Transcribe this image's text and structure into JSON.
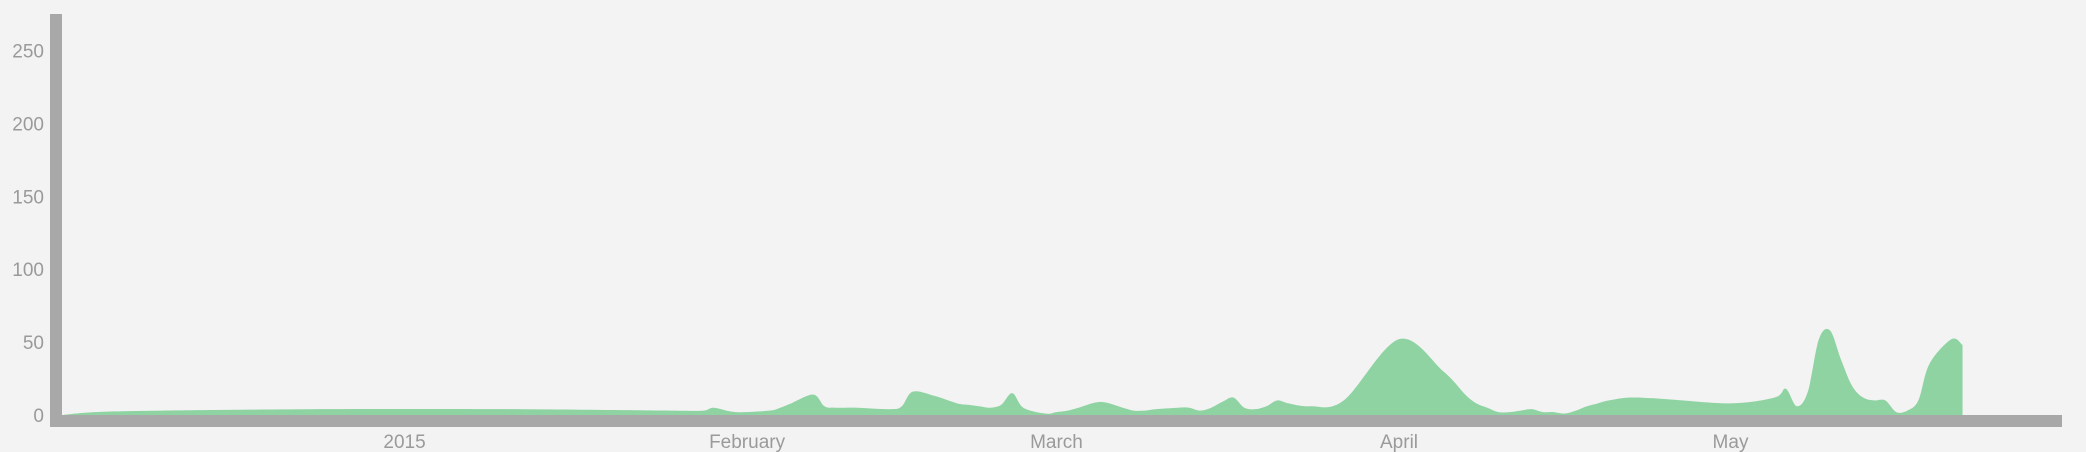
{
  "chart_data": {
    "type": "area",
    "title": "",
    "xlabel": "",
    "ylabel": "",
    "x_domain": [
      "2014-12-01",
      "2015-05-31"
    ],
    "ylim": [
      0,
      275
    ],
    "y_ticks": [
      0,
      50,
      100,
      150,
      200,
      250
    ],
    "x_ticks": [
      {
        "date": "2015-01-01",
        "label": "2015"
      },
      {
        "date": "2015-02-01",
        "label": "February"
      },
      {
        "date": "2015-03-01",
        "label": "March"
      },
      {
        "date": "2015-04-01",
        "label": "April"
      },
      {
        "date": "2015-05-01",
        "label": "May"
      }
    ],
    "colors": {
      "area": "#8fd3a3",
      "axis": "#a8a8a8",
      "tick_text": "#9a9a9a",
      "background": "#f3f3f3"
    },
    "grid": false,
    "legend": "none",
    "series": [
      {
        "x": [
          "2014-12-01",
          "2014-12-04",
          "2014-12-10",
          "2014-12-25",
          "2015-01-10",
          "2015-01-25",
          "2015-01-28",
          "2015-01-29",
          "2015-01-31",
          "2015-02-03",
          "2015-02-04",
          "2015-02-05",
          "2015-02-07",
          "2015-02-08",
          "2015-02-09",
          "2015-02-11",
          "2015-02-14",
          "2015-02-15",
          "2015-02-16",
          "2015-02-18",
          "2015-02-20",
          "2015-02-21",
          "2015-02-22",
          "2015-02-23",
          "2015-02-24",
          "2015-02-25",
          "2015-02-26",
          "2015-02-28",
          "2015-03-01",
          "2015-03-02",
          "2015-03-03",
          "2015-03-05",
          "2015-03-07",
          "2015-03-08",
          "2015-03-09",
          "2015-03-10",
          "2015-03-12",
          "2015-03-13",
          "2015-03-14",
          "2015-03-15",
          "2015-03-16",
          "2015-03-17",
          "2015-03-18",
          "2015-03-19",
          "2015-03-20",
          "2015-03-21",
          "2015-03-22",
          "2015-03-24",
          "2015-03-27",
          "2015-04-01",
          "2015-04-05",
          "2015-04-07",
          "2015-04-08",
          "2015-04-09",
          "2015-04-10",
          "2015-04-11",
          "2015-04-12",
          "2015-04-13",
          "2015-04-14",
          "2015-04-15",
          "2015-04-16",
          "2015-04-17",
          "2015-04-18",
          "2015-04-19",
          "2015-04-20",
          "2015-04-22",
          "2015-04-25",
          "2015-05-01",
          "2015-05-05",
          "2015-05-06",
          "2015-05-07",
          "2015-05-08",
          "2015-05-09",
          "2015-05-10",
          "2015-05-11",
          "2015-05-12",
          "2015-05-13",
          "2015-05-14",
          "2015-05-15",
          "2015-05-16",
          "2015-05-17",
          "2015-05-18",
          "2015-05-19",
          "2015-05-21",
          "2015-05-22"
        ],
        "y": [
          0,
          2,
          3,
          4,
          4,
          3,
          3,
          5,
          2,
          3,
          5,
          8,
          14,
          6,
          5,
          5,
          4,
          6,
          16,
          13,
          8,
          7,
          6,
          5,
          7,
          15,
          5,
          1,
          2,
          3,
          5,
          9,
          5,
          3,
          3,
          4,
          5,
          5,
          3,
          5,
          9,
          12,
          5,
          4,
          6,
          10,
          8,
          6,
          10,
          52,
          30,
          14,
          8,
          5,
          2,
          2,
          3,
          4,
          2,
          2,
          1,
          3,
          6,
          8,
          10,
          12,
          11,
          8,
          12,
          18,
          6,
          16,
          52,
          58,
          38,
          20,
          12,
          10,
          10,
          2,
          3,
          10,
          35,
          52,
          48
        ]
      }
    ]
  }
}
